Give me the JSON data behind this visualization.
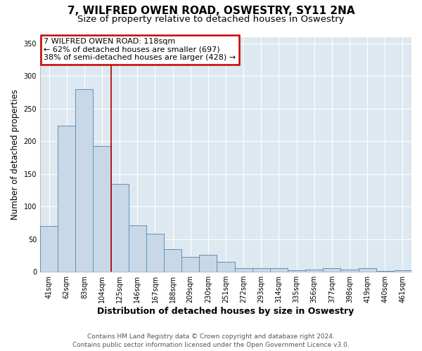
{
  "title": "7, WILFRED OWEN ROAD, OSWESTRY, SY11 2NA",
  "subtitle": "Size of property relative to detached houses in Oswestry",
  "xlabel": "Distribution of detached houses by size in Oswestry",
  "ylabel": "Number of detached properties",
  "categories": [
    "41sqm",
    "62sqm",
    "83sqm",
    "104sqm",
    "125sqm",
    "146sqm",
    "167sqm",
    "188sqm",
    "209sqm",
    "230sqm",
    "251sqm",
    "272sqm",
    "293sqm",
    "314sqm",
    "335sqm",
    "356sqm",
    "377sqm",
    "398sqm",
    "419sqm",
    "440sqm",
    "461sqm"
  ],
  "values": [
    70,
    224,
    280,
    193,
    135,
    71,
    58,
    35,
    23,
    26,
    15,
    5,
    6,
    6,
    2,
    3,
    5,
    3,
    6,
    1,
    2
  ],
  "bar_color": "#c8d8e8",
  "bar_edge_color": "#6090b8",
  "bar_edge_width": 0.7,
  "vline_x_index": 3.5,
  "vline_color": "#aa0000",
  "annotation_title": "7 WILFRED OWEN ROAD: 118sqm",
  "annotation_line1": "← 62% of detached houses are smaller (697)",
  "annotation_line2": "38% of semi-detached houses are larger (428) →",
  "annotation_box_color": "white",
  "annotation_box_edge_color": "#cc0000",
  "ylim": [
    0,
    360
  ],
  "yticks": [
    0,
    50,
    100,
    150,
    200,
    250,
    300,
    350
  ],
  "plot_bg_color": "#dde8f0",
  "fig_bg_color": "#ffffff",
  "grid_color": "#ffffff",
  "footer_line1": "Contains HM Land Registry data © Crown copyright and database right 2024.",
  "footer_line2": "Contains public sector information licensed under the Open Government Licence v3.0.",
  "title_fontsize": 11,
  "subtitle_fontsize": 9.5,
  "xlabel_fontsize": 9,
  "ylabel_fontsize": 8.5,
  "tick_fontsize": 7,
  "annotation_fontsize": 8,
  "footer_fontsize": 6.5
}
